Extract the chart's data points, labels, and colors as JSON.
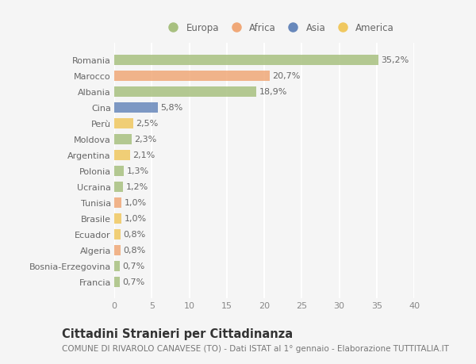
{
  "countries": [
    "Romania",
    "Marocco",
    "Albania",
    "Cina",
    "Perù",
    "Moldova",
    "Argentina",
    "Polonia",
    "Ucraina",
    "Tunisia",
    "Brasile",
    "Ecuador",
    "Algeria",
    "Bosnia-Erzegovina",
    "Francia"
  ],
  "values": [
    35.2,
    20.7,
    18.9,
    5.8,
    2.5,
    2.3,
    2.1,
    1.3,
    1.2,
    1.0,
    1.0,
    0.8,
    0.8,
    0.7,
    0.7
  ],
  "labels": [
    "35,2%",
    "20,7%",
    "18,9%",
    "5,8%",
    "2,5%",
    "2,3%",
    "2,1%",
    "1,3%",
    "1,2%",
    "1,0%",
    "1,0%",
    "0,8%",
    "0,8%",
    "0,7%",
    "0,7%"
  ],
  "continents": [
    "Europa",
    "Africa",
    "Europa",
    "Asia",
    "America",
    "Europa",
    "America",
    "Europa",
    "Europa",
    "Africa",
    "America",
    "America",
    "Africa",
    "Europa",
    "Europa"
  ],
  "colors": {
    "Europa": "#a8c080",
    "Africa": "#f0a878",
    "Asia": "#6888bb",
    "America": "#f0c860"
  },
  "legend_order": [
    "Europa",
    "Africa",
    "Asia",
    "America"
  ],
  "legend_colors": [
    "#a8c080",
    "#f0a878",
    "#6888bb",
    "#f0c860"
  ],
  "title": "Cittadini Stranieri per Cittadinanza",
  "subtitle": "COMUNE DI RIVAROLO CANAVESE (TO) - Dati ISTAT al 1° gennaio - Elaborazione TUTTITALIA.IT",
  "xlim": [
    0,
    40
  ],
  "xticks": [
    0,
    5,
    10,
    15,
    20,
    25,
    30,
    35,
    40
  ],
  "bg_color": "#f5f5f5",
  "bar_height": 0.65,
  "label_fontsize": 8,
  "tick_fontsize": 8,
  "title_fontsize": 10.5,
  "subtitle_fontsize": 7.5,
  "legend_fontsize": 8.5
}
